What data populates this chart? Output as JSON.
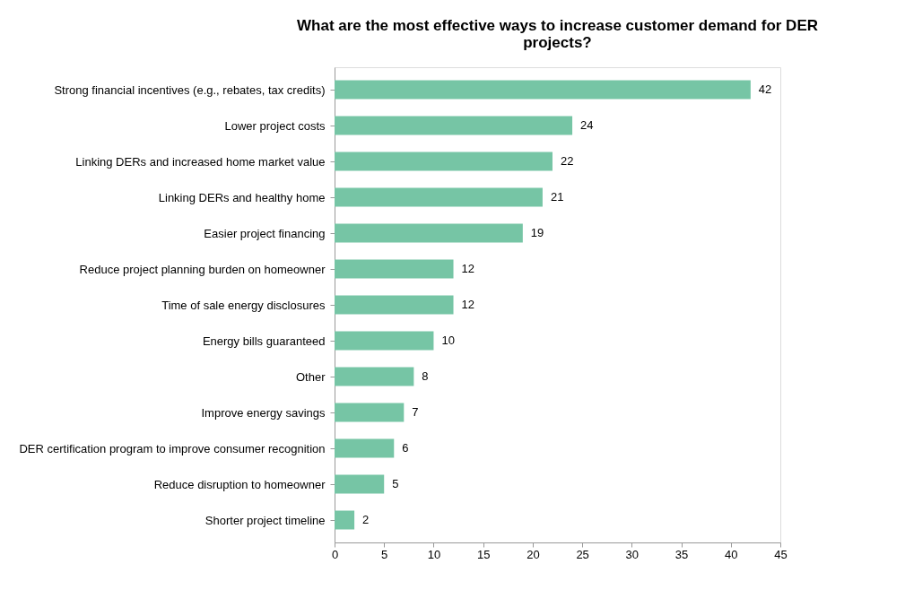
{
  "chart_data": {
    "type": "bar",
    "orientation": "horizontal",
    "title": "What are the most effective ways to increase customer demand for DER projects?",
    "categories": [
      "Strong financial incentives (e.g., rebates, tax credits)",
      "Lower project costs",
      "Linking DERs and increased home market value",
      "Linking DERs and healthy home",
      "Easier project financing",
      "Reduce project planning burden on homeowner",
      "Time of sale energy disclosures",
      "Energy bills guaranteed",
      "Other",
      "Improve energy savings",
      "DER certification program to improve consumer recognition",
      "Reduce disruption to homeowner",
      "Shorter project timeline"
    ],
    "values": [
      42,
      24,
      22,
      21,
      19,
      12,
      12,
      10,
      8,
      7,
      6,
      5,
      2
    ],
    "color": "#76c5a5",
    "xlim": [
      0,
      45
    ],
    "xticks": [
      0,
      5,
      10,
      15,
      20,
      25,
      30,
      35,
      40,
      45
    ],
    "data_labels": true,
    "grid": false
  }
}
